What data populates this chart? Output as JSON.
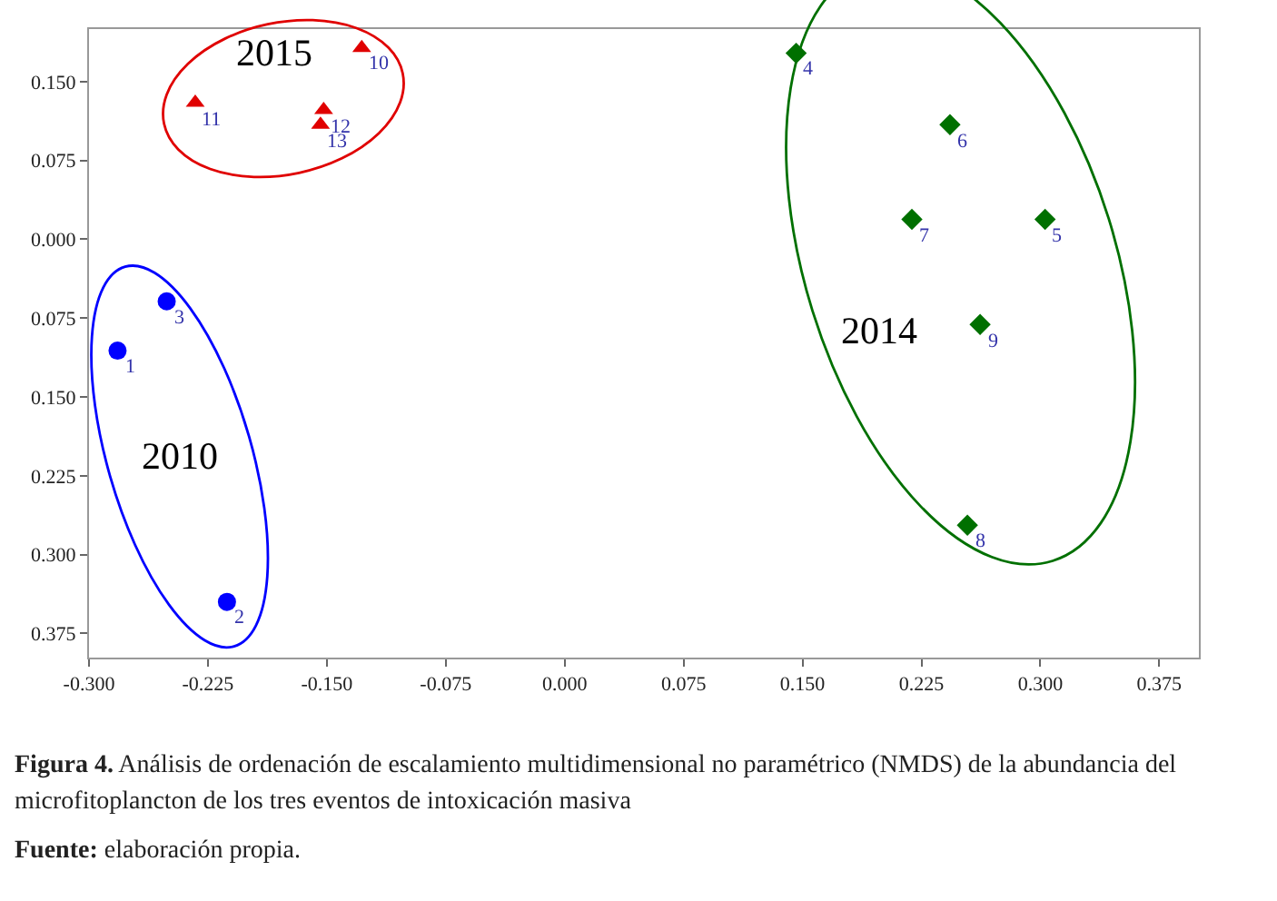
{
  "chart_data": {
    "type": "scatter",
    "xlim": [
      -0.3,
      0.4
    ],
    "xticks": [
      {
        "value": -0.3,
        "label": "-0.300"
      },
      {
        "value": -0.225,
        "label": "-0.225"
      },
      {
        "value": -0.15,
        "label": "-0.150"
      },
      {
        "value": -0.075,
        "label": "-0.075"
      },
      {
        "value": 0,
        "label": "0.000"
      },
      {
        "value": 0.075,
        "label": "0.075"
      },
      {
        "value": 0.15,
        "label": "0.150"
      },
      {
        "value": 0.225,
        "label": "0.225"
      },
      {
        "value": 0.3,
        "label": "0.300"
      },
      {
        "value": 0.375,
        "label": "0.375"
      }
    ],
    "ylim": [
      -0.398,
      0.2
    ],
    "yticks": [
      {
        "value": 0.15,
        "label": "0.150"
      },
      {
        "value": 0.075,
        "label": "0.075"
      },
      {
        "value": 0,
        "label": "0.000"
      },
      {
        "value": -0.075,
        "label": "0.075"
      },
      {
        "value": -0.15,
        "label": "0.150"
      },
      {
        "value": -0.225,
        "label": "0.225"
      },
      {
        "value": -0.3,
        "label": "0.300"
      },
      {
        "value": -0.375,
        "label": "0.375"
      }
    ],
    "grid": false,
    "legend": false,
    "series": [
      {
        "name": "2010",
        "color": "#0000ff",
        "marker": "circle",
        "x": [
          -0.282,
          -0.213,
          -0.251
        ],
        "values": [
          -0.106,
          -0.345,
          -0.059
        ]
      },
      {
        "name": "2014",
        "color": "#007000",
        "marker": "diamond",
        "x": [
          0.146,
          0.303,
          0.243,
          0.219,
          0.254,
          0.262
        ],
        "values": [
          0.177,
          0.019,
          0.109,
          0.019,
          -0.272,
          -0.081
        ]
      },
      {
        "name": "2015",
        "color": "#e00000",
        "marker": "triangle",
        "x": [
          -0.128,
          -0.233,
          -0.152,
          -0.154
        ],
        "values": [
          0.182,
          0.13,
          0.123,
          0.109
        ]
      }
    ],
    "annotations": [
      {
        "text": "1",
        "x": -0.282,
        "y": -0.106
      },
      {
        "text": "2",
        "x": -0.213,
        "y": -0.345
      },
      {
        "text": "3",
        "x": -0.251,
        "y": -0.059
      },
      {
        "text": "4",
        "x": 0.146,
        "y": 0.177
      },
      {
        "text": "5",
        "x": 0.303,
        "y": 0.019
      },
      {
        "text": "6",
        "x": 0.243,
        "y": 0.109
      },
      {
        "text": "7",
        "x": 0.219,
        "y": 0.019
      },
      {
        "text": "8",
        "x": 0.254,
        "y": -0.272
      },
      {
        "text": "9",
        "x": 0.262,
        "y": -0.081
      },
      {
        "text": "10",
        "x": -0.128,
        "y": 0.182
      },
      {
        "text": "11",
        "x": -0.233,
        "y": 0.13
      },
      {
        "text": "12",
        "x": -0.152,
        "y": 0.123
      },
      {
        "text": "13",
        "x": -0.154,
        "y": 0.109
      },
      "Figura 4. Análisis de ordenación de escalamiento multidimensional no paramétrico (NMDS) de la abundancia del microfitoplancton de los tres eventos de intoxicación masiva",
      "Fuente: elaboración propia."
    ]
  }
}
